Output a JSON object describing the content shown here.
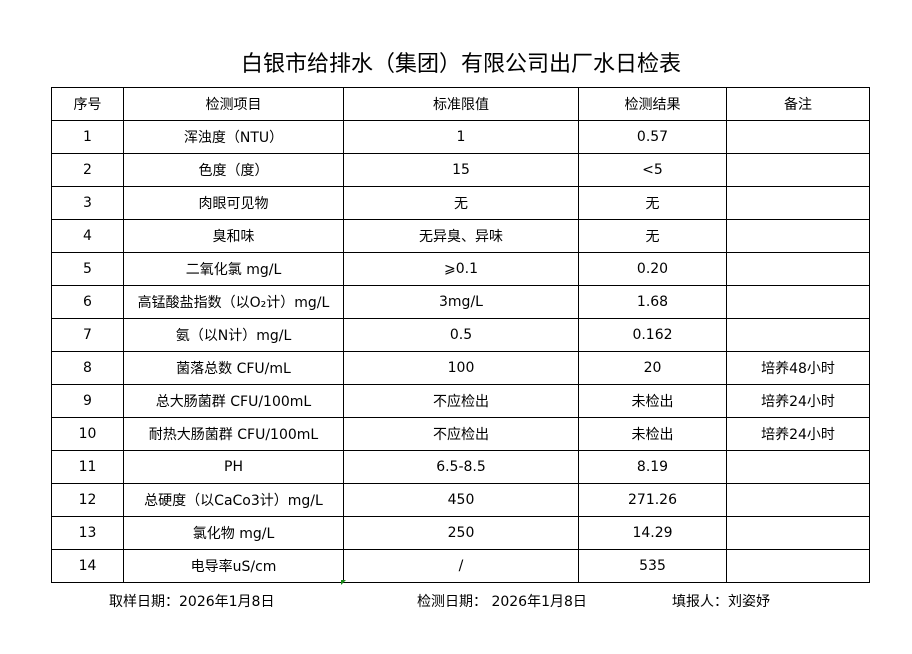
{
  "title": "白银市给排水（集团）有限公司出厂水日检表",
  "headers": [
    "序号",
    "检测项目",
    "标准限值",
    "检测结果",
    "备注"
  ],
  "rows": [
    [
      "1",
      "浑浊度（NTU）",
      "1",
      "0.57",
      ""
    ],
    [
      "2",
      "色度（度）",
      "15",
      "<5",
      ""
    ],
    [
      "3",
      "肉眼可见物",
      "无",
      "无",
      ""
    ],
    [
      "4",
      "臭和味",
      "无异臭、异味",
      "无",
      ""
    ],
    [
      "5",
      "二氧化氯 mg/L",
      "⩾0.1",
      "0.20",
      ""
    ],
    [
      "6",
      "高锰酸盐指数（以O₂计）mg/L",
      "3mg/L",
      "1.68",
      ""
    ],
    [
      "7",
      "氨（以N计）mg/L",
      "0.5",
      "0.162",
      ""
    ],
    [
      "8",
      "菌落总数 CFU/mL",
      "100",
      "20",
      "培养48小时"
    ],
    [
      "9",
      "总大肠菌群 CFU/100mL",
      "不应检出",
      "未检出",
      "培养24小时"
    ],
    [
      "10",
      "耐热大肠菌群 CFU/100mL",
      "不应检出",
      "未检出",
      "培养24小时"
    ],
    [
      "11",
      "PH",
      "6.5-8.5",
      "8.19",
      ""
    ],
    [
      "12",
      "总硬度（以CaCo3计）mg/L",
      "450",
      "271.26",
      ""
    ],
    [
      "13",
      "氯化物 mg/L",
      "250",
      "14.29",
      ""
    ],
    [
      "14",
      "电导率uS/cm",
      "/",
      "535",
      ""
    ]
  ],
  "footer": {
    "sample_date": "取样日期：2026年1月8日",
    "test_date": "检测日期： 2026年1月8日",
    "reporter": "填报人：刘姿妤"
  }
}
